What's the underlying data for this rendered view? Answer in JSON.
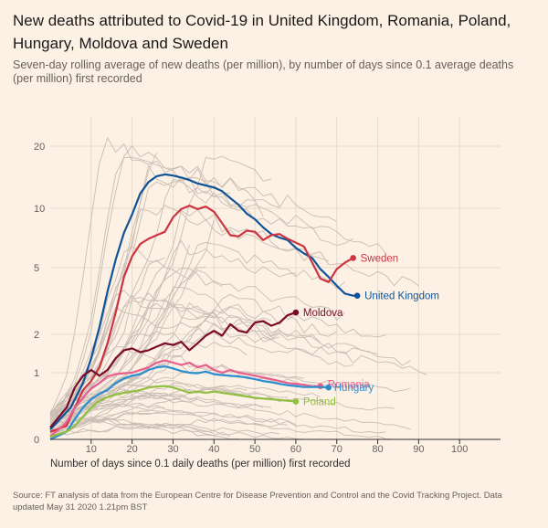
{
  "title": "New deaths attributed to Covid-19 in United Kingdom, Romania, Poland, Hungary, Moldova and Sweden",
  "subtitle": "Seven-day rolling average of new deaths (per million), by number of days since 0.1 average deaths (per million) first recorded",
  "source": "Source: FT analysis of data from the European Centre for Disease Prevention and Control and the Covid Tracking Project. Data updated May 31 2020 1.21pm BST",
  "chart_data": {
    "type": "line",
    "xlabel": "Number of days since 0.1 daily deaths (per million) first recorded",
    "ylabel": "",
    "yscale": "log",
    "xlim": [
      0,
      110
    ],
    "ylim": [
      0.1,
      28
    ],
    "x_ticks": [
      10,
      20,
      30,
      40,
      50,
      60,
      70,
      80,
      90,
      100
    ],
    "y_ticks": [
      {
        "value": 0.1,
        "label": "0"
      },
      {
        "value": 1,
        "label": "1"
      },
      {
        "value": 2,
        "label": "2"
      },
      {
        "value": 5,
        "label": "5"
      },
      {
        "value": 10,
        "label": "10"
      },
      {
        "value": 20,
        "label": "20"
      }
    ],
    "series": [
      {
        "name": "United Kingdom",
        "color": "#0f5499",
        "points": [
          [
            0,
            0.14
          ],
          [
            5,
            0.3
          ],
          [
            8,
            0.7
          ],
          [
            10,
            1.3
          ],
          [
            12,
            2.2
          ],
          [
            14,
            3.6
          ],
          [
            16,
            5.5
          ],
          [
            18,
            7.5
          ],
          [
            20,
            9.3
          ],
          [
            22,
            11.8
          ],
          [
            24,
            13.4
          ],
          [
            26,
            14.3
          ],
          [
            28,
            14.6
          ],
          [
            30,
            14.4
          ],
          [
            32,
            14.1
          ],
          [
            34,
            13.7
          ],
          [
            36,
            13.2
          ],
          [
            38,
            12.9
          ],
          [
            40,
            12.6
          ],
          [
            42,
            12.1
          ],
          [
            44,
            11.2
          ],
          [
            46,
            10.4
          ],
          [
            48,
            9.4
          ],
          [
            50,
            8.8
          ],
          [
            52,
            8.0
          ],
          [
            54,
            7.4
          ],
          [
            56,
            7.1
          ],
          [
            58,
            6.9
          ],
          [
            60,
            6.3
          ],
          [
            62,
            5.9
          ],
          [
            64,
            5.6
          ],
          [
            66,
            4.9
          ],
          [
            68,
            4.4
          ],
          [
            70,
            3.9
          ],
          [
            72,
            3.5
          ],
          [
            74,
            3.4
          ],
          [
            75,
            3.4
          ]
        ]
      },
      {
        "name": "Sweden",
        "color": "#cc3440",
        "points": [
          [
            0,
            0.13
          ],
          [
            4,
            0.16
          ],
          [
            6,
            0.3
          ],
          [
            8,
            0.55
          ],
          [
            10,
            0.75
          ],
          [
            12,
            1.1
          ],
          [
            14,
            1.7
          ],
          [
            16,
            2.7
          ],
          [
            18,
            4.4
          ],
          [
            20,
            5.7
          ],
          [
            22,
            6.6
          ],
          [
            24,
            7.0
          ],
          [
            26,
            7.3
          ],
          [
            28,
            7.6
          ],
          [
            30,
            9.0
          ],
          [
            32,
            9.9
          ],
          [
            34,
            10.3
          ],
          [
            36,
            9.9
          ],
          [
            38,
            10.2
          ],
          [
            40,
            9.6
          ],
          [
            42,
            8.4
          ],
          [
            44,
            7.3
          ],
          [
            46,
            7.2
          ],
          [
            48,
            7.7
          ],
          [
            50,
            7.6
          ],
          [
            52,
            6.9
          ],
          [
            54,
            7.3
          ],
          [
            56,
            7.4
          ],
          [
            58,
            7.0
          ],
          [
            60,
            6.7
          ],
          [
            62,
            6.4
          ],
          [
            64,
            5.3
          ],
          [
            66,
            4.3
          ],
          [
            68,
            4.1
          ],
          [
            70,
            4.9
          ],
          [
            72,
            5.3
          ],
          [
            74,
            5.6
          ]
        ]
      },
      {
        "name": "Moldova",
        "color": "#7a0c29",
        "points": [
          [
            0,
            0.15
          ],
          [
            4,
            0.3
          ],
          [
            6,
            0.6
          ],
          [
            8,
            0.9
          ],
          [
            10,
            1.05
          ],
          [
            12,
            0.9
          ],
          [
            14,
            1.05
          ],
          [
            16,
            1.3
          ],
          [
            18,
            1.5
          ],
          [
            20,
            1.55
          ],
          [
            22,
            1.45
          ],
          [
            24,
            1.5
          ],
          [
            26,
            1.6
          ],
          [
            28,
            1.7
          ],
          [
            30,
            1.65
          ],
          [
            32,
            1.75
          ],
          [
            34,
            1.5
          ],
          [
            36,
            1.7
          ],
          [
            38,
            1.95
          ],
          [
            40,
            2.1
          ],
          [
            42,
            1.95
          ],
          [
            44,
            2.3
          ],
          [
            46,
            2.1
          ],
          [
            48,
            2.05
          ],
          [
            50,
            2.35
          ],
          [
            52,
            2.4
          ],
          [
            54,
            2.25
          ],
          [
            56,
            2.35
          ],
          [
            58,
            2.6
          ],
          [
            60,
            2.7
          ]
        ]
      },
      {
        "name": "Romania",
        "color": "#e95d8c",
        "points": [
          [
            0,
            0.11
          ],
          [
            4,
            0.18
          ],
          [
            6,
            0.3
          ],
          [
            8,
            0.42
          ],
          [
            10,
            0.58
          ],
          [
            12,
            0.7
          ],
          [
            14,
            0.88
          ],
          [
            16,
            0.95
          ],
          [
            18,
            0.98
          ],
          [
            20,
            1.0
          ],
          [
            22,
            1.05
          ],
          [
            24,
            1.1
          ],
          [
            26,
            1.2
          ],
          [
            28,
            1.25
          ],
          [
            30,
            1.2
          ],
          [
            32,
            1.15
          ],
          [
            34,
            1.2
          ],
          [
            36,
            1.1
          ],
          [
            38,
            1.15
          ],
          [
            40,
            1.05
          ],
          [
            42,
            1.0
          ],
          [
            44,
            1.05
          ],
          [
            46,
            1.0
          ],
          [
            48,
            0.95
          ],
          [
            50,
            0.9
          ],
          [
            52,
            0.85
          ],
          [
            54,
            0.8
          ],
          [
            56,
            0.75
          ],
          [
            58,
            0.7
          ],
          [
            60,
            0.68
          ],
          [
            62,
            0.66
          ],
          [
            64,
            0.62
          ],
          [
            66,
            0.63
          ]
        ]
      },
      {
        "name": "Hungary",
        "color": "#2a8fd0",
        "points": [
          [
            0,
            0.1
          ],
          [
            4,
            0.13
          ],
          [
            6,
            0.2
          ],
          [
            8,
            0.3
          ],
          [
            10,
            0.4
          ],
          [
            12,
            0.48
          ],
          [
            14,
            0.55
          ],
          [
            16,
            0.7
          ],
          [
            18,
            0.82
          ],
          [
            20,
            0.9
          ],
          [
            22,
            0.95
          ],
          [
            24,
            1.05
          ],
          [
            26,
            1.1
          ],
          [
            28,
            1.12
          ],
          [
            30,
            1.08
          ],
          [
            32,
            1.03
          ],
          [
            34,
            1.0
          ],
          [
            36,
            0.98
          ],
          [
            38,
            1.02
          ],
          [
            40,
            0.95
          ],
          [
            42,
            0.92
          ],
          [
            44,
            0.9
          ],
          [
            46,
            0.88
          ],
          [
            48,
            0.85
          ],
          [
            50,
            0.8
          ],
          [
            52,
            0.75
          ],
          [
            54,
            0.72
          ],
          [
            56,
            0.68
          ],
          [
            58,
            0.65
          ],
          [
            60,
            0.63
          ],
          [
            62,
            0.61
          ],
          [
            64,
            0.61
          ],
          [
            66,
            0.61
          ],
          [
            68,
            0.6
          ]
        ]
      },
      {
        "name": "Poland",
        "color": "#8fbf3f",
        "points": [
          [
            0,
            0.11
          ],
          [
            4,
            0.13
          ],
          [
            6,
            0.16
          ],
          [
            8,
            0.22
          ],
          [
            10,
            0.3
          ],
          [
            12,
            0.38
          ],
          [
            14,
            0.43
          ],
          [
            16,
            0.47
          ],
          [
            18,
            0.5
          ],
          [
            20,
            0.52
          ],
          [
            22,
            0.55
          ],
          [
            24,
            0.6
          ],
          [
            26,
            0.62
          ],
          [
            28,
            0.63
          ],
          [
            30,
            0.6
          ],
          [
            32,
            0.55
          ],
          [
            34,
            0.5
          ],
          [
            36,
            0.52
          ],
          [
            38,
            0.5
          ],
          [
            40,
            0.52
          ],
          [
            42,
            0.5
          ],
          [
            44,
            0.48
          ],
          [
            46,
            0.46
          ],
          [
            48,
            0.44
          ],
          [
            50,
            0.42
          ],
          [
            52,
            0.41
          ],
          [
            54,
            0.4
          ],
          [
            56,
            0.39
          ],
          [
            58,
            0.38
          ],
          [
            60,
            0.37
          ]
        ]
      }
    ]
  }
}
